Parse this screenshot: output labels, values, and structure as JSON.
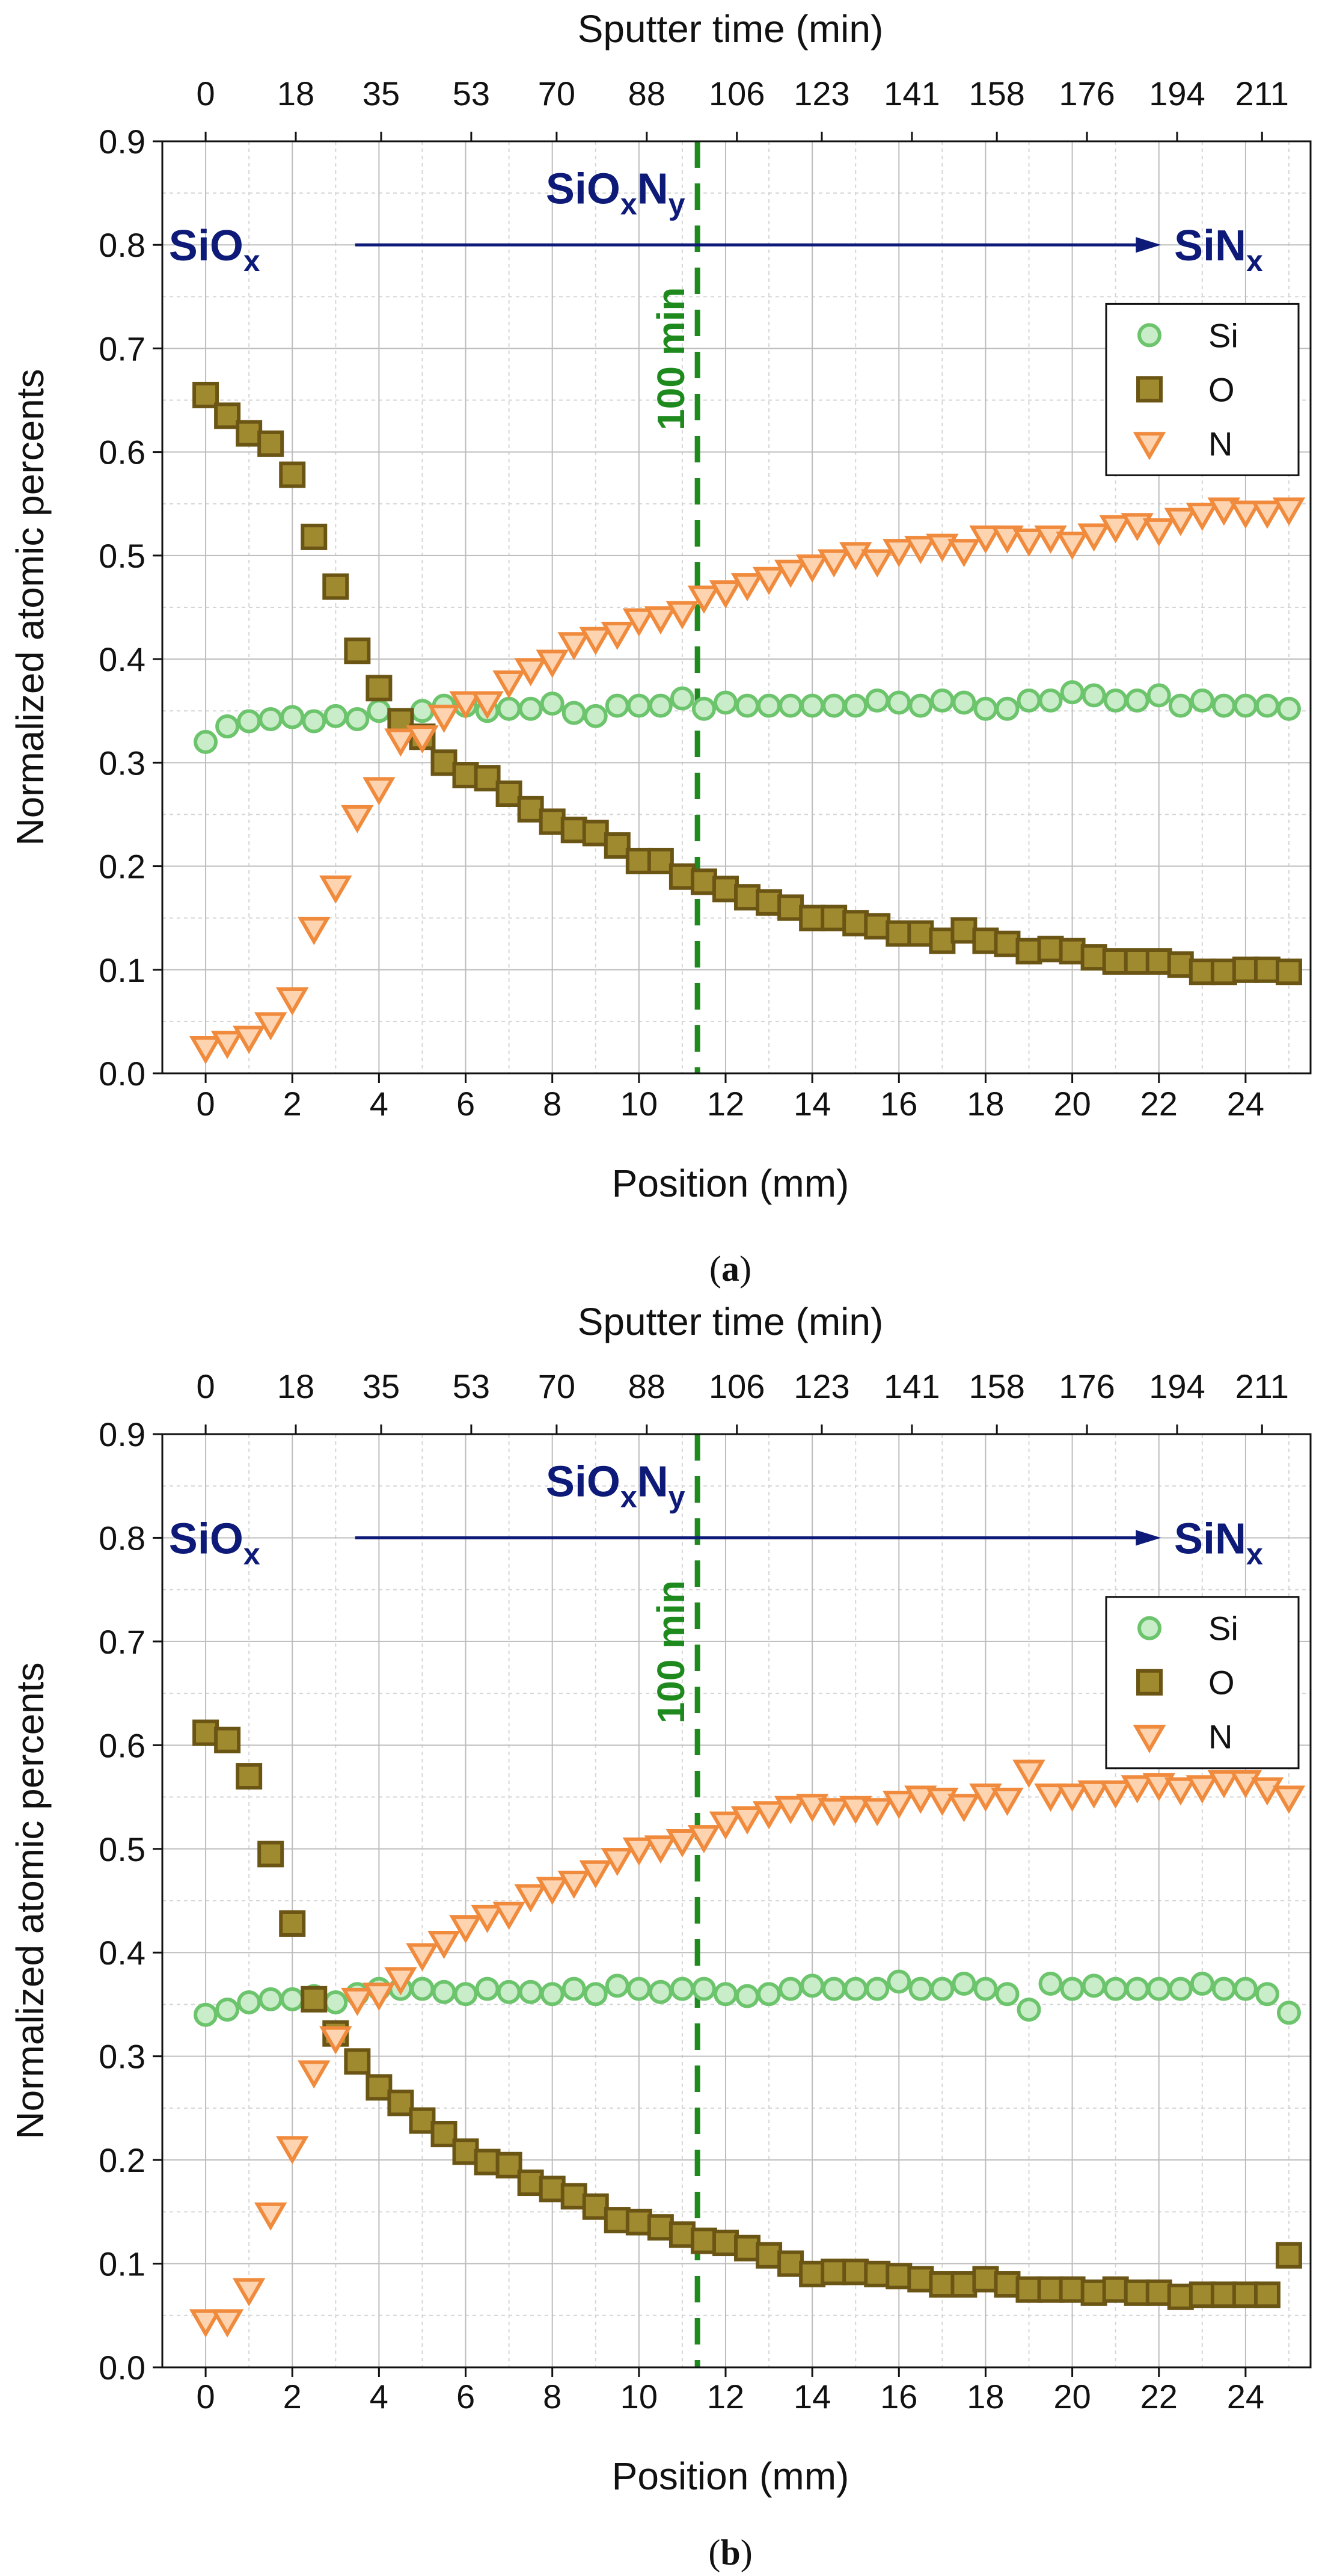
{
  "chart_data": [
    {
      "id": "a",
      "type": "scatter",
      "caption_letter": "a",
      "caption_open": "(",
      "caption_close": ")",
      "xlabel": "Position (mm)",
      "ylabel": "Normalized atomic percents",
      "top_label": "Sputter time (min)",
      "xlim": [
        -1,
        25.5
      ],
      "ylim": [
        0,
        0.9
      ],
      "xticks": [
        0,
        2,
        4,
        6,
        8,
        10,
        12,
        14,
        16,
        18,
        20,
        22,
        24
      ],
      "yticks": [
        "0.0",
        "0.1",
        "0.2",
        "0.3",
        "0.4",
        "0.5",
        "0.6",
        "0.7",
        "0.8",
        "0.9"
      ],
      "top_ticks": {
        "positions": [
          0,
          2.08,
          4.05,
          6.13,
          8.1,
          10.18,
          12.26,
          14.22,
          16.3,
          18.26,
          20.34,
          22.42,
          24.38
        ],
        "labels": [
          "0",
          "18",
          "35",
          "53",
          "70",
          "88",
          "106",
          "123",
          "141",
          "158",
          "176",
          "194",
          "211"
        ]
      },
      "grid": true,
      "vline": {
        "x": 11.35,
        "label": "100 min",
        "color": "#1e8a1e"
      },
      "region_labels": {
        "left": {
          "main": "SiO",
          "sub": "x"
        },
        "middle": {
          "main1": "SiO",
          "sub1": "x",
          "main2": "N",
          "sub2": "y"
        },
        "right": {
          "main": "SiN",
          "sub": "x"
        }
      },
      "legend_position": "top-right",
      "series": [
        {
          "name": "Si",
          "marker": "circle",
          "color": "#6cc46c",
          "fill": "#c9ecc9",
          "x": [
            0,
            0.5,
            1,
            1.5,
            2,
            2.5,
            3,
            3.5,
            4,
            4.5,
            5,
            5.5,
            6,
            6.5,
            7,
            7.5,
            8,
            8.5,
            9,
            9.5,
            10,
            10.5,
            11,
            11.5,
            12,
            12.5,
            13,
            13.5,
            14,
            14.5,
            15,
            15.5,
            16,
            16.5,
            17,
            17.5,
            18,
            18.5,
            19,
            19.5,
            20,
            20.5,
            21,
            21.5,
            22,
            22.5,
            23,
            23.5,
            24,
            24.5,
            25
          ],
          "y": [
            0.32,
            0.335,
            0.34,
            0.342,
            0.344,
            0.34,
            0.345,
            0.342,
            0.35,
            0.34,
            0.35,
            0.355,
            0.355,
            0.35,
            0.352,
            0.352,
            0.357,
            0.348,
            0.345,
            0.355,
            0.355,
            0.355,
            0.362,
            0.352,
            0.358,
            0.355,
            0.355,
            0.355,
            0.355,
            0.355,
            0.355,
            0.36,
            0.358,
            0.355,
            0.36,
            0.358,
            0.352,
            0.352,
            0.36,
            0.36,
            0.368,
            0.365,
            0.36,
            0.36,
            0.365,
            0.355,
            0.36,
            0.355,
            0.355,
            0.355,
            0.352
          ]
        },
        {
          "name": "O",
          "marker": "square",
          "color": "#6b5514",
          "fill": "#a08a30",
          "x": [
            0,
            0.5,
            1,
            1.5,
            2,
            2.5,
            3,
            3.5,
            4,
            4.5,
            5,
            5.5,
            6,
            6.5,
            7,
            7.5,
            8,
            8.5,
            9,
            9.5,
            10,
            10.5,
            11,
            11.5,
            12,
            12.5,
            13,
            13.5,
            14,
            14.5,
            15,
            15.5,
            16,
            16.5,
            17,
            17.5,
            18,
            18.5,
            19,
            19.5,
            20,
            20.5,
            21,
            21.5,
            22,
            22.5,
            23,
            23.5,
            24,
            24.5,
            25
          ],
          "y": [
            0.655,
            0.635,
            0.618,
            0.608,
            0.578,
            0.518,
            0.47,
            0.408,
            0.372,
            0.34,
            0.325,
            0.3,
            0.288,
            0.285,
            0.27,
            0.255,
            0.243,
            0.235,
            0.232,
            0.22,
            0.205,
            0.205,
            0.19,
            0.185,
            0.178,
            0.17,
            0.165,
            0.16,
            0.15,
            0.15,
            0.145,
            0.142,
            0.135,
            0.135,
            0.128,
            0.138,
            0.128,
            0.125,
            0.118,
            0.12,
            0.118,
            0.112,
            0.108,
            0.108,
            0.108,
            0.105,
            0.098,
            0.098,
            0.1,
            0.1,
            0.098
          ]
        },
        {
          "name": "N",
          "marker": "triangle-down",
          "color": "#f08a3c",
          "fill": "#fdd3b0",
          "x": [
            0,
            0.5,
            1,
            1.5,
            2,
            2.5,
            3,
            3.5,
            4,
            4.5,
            5,
            5.5,
            6,
            6.5,
            7,
            7.5,
            8,
            8.5,
            9,
            9.5,
            10,
            10.5,
            11,
            11.5,
            12,
            12.5,
            13,
            13.5,
            14,
            14.5,
            15,
            15.5,
            16,
            16.5,
            17,
            17.5,
            18,
            18.5,
            19,
            19.5,
            20,
            20.5,
            21,
            21.5,
            22,
            22.5,
            23,
            23.5,
            24,
            24.5,
            25
          ],
          "y": [
            0.025,
            0.03,
            0.035,
            0.048,
            0.072,
            0.14,
            0.18,
            0.248,
            0.275,
            0.322,
            0.325,
            0.345,
            0.358,
            0.358,
            0.378,
            0.39,
            0.398,
            0.415,
            0.42,
            0.425,
            0.438,
            0.44,
            0.445,
            0.46,
            0.465,
            0.472,
            0.478,
            0.485,
            0.49,
            0.495,
            0.502,
            0.495,
            0.505,
            0.508,
            0.51,
            0.505,
            0.518,
            0.518,
            0.515,
            0.518,
            0.512,
            0.52,
            0.528,
            0.53,
            0.525,
            0.535,
            0.54,
            0.545,
            0.542,
            0.542,
            0.545
          ]
        }
      ]
    },
    {
      "id": "b",
      "type": "scatter",
      "caption_letter": "b",
      "caption_open": "(",
      "caption_close": ")",
      "xlabel": "Position (mm)",
      "ylabel": "Normalized atomic percents",
      "top_label": "Sputter time (min)",
      "xlim": [
        -1,
        25.5
      ],
      "ylim": [
        0,
        0.9
      ],
      "xticks": [
        0,
        2,
        4,
        6,
        8,
        10,
        12,
        14,
        16,
        18,
        20,
        22,
        24
      ],
      "yticks": [
        "0.0",
        "0.1",
        "0.2",
        "0.3",
        "0.4",
        "0.5",
        "0.6",
        "0.7",
        "0.8",
        "0.9"
      ],
      "top_ticks": {
        "positions": [
          0,
          2.08,
          4.05,
          6.13,
          8.1,
          10.18,
          12.26,
          14.22,
          16.3,
          18.26,
          20.34,
          22.42,
          24.38
        ],
        "labels": [
          "0",
          "18",
          "35",
          "53",
          "70",
          "88",
          "106",
          "123",
          "141",
          "158",
          "176",
          "194",
          "211"
        ]
      },
      "grid": true,
      "vline": {
        "x": 11.35,
        "label": "100 min",
        "color": "#1e8a1e"
      },
      "region_labels": {
        "left": {
          "main": "SiO",
          "sub": "x"
        },
        "middle": {
          "main1": "SiO",
          "sub1": "x",
          "main2": "N",
          "sub2": "y"
        },
        "right": {
          "main": "SiN",
          "sub": "x"
        }
      },
      "legend_position": "top-right",
      "series": [
        {
          "name": "Si",
          "marker": "circle",
          "color": "#6cc46c",
          "fill": "#c9ecc9",
          "x": [
            0,
            0.5,
            1,
            1.5,
            2,
            2.5,
            3,
            3.5,
            4,
            4.5,
            5,
            5.5,
            6,
            6.5,
            7,
            7.5,
            8,
            8.5,
            9,
            9.5,
            10,
            10.5,
            11,
            11.5,
            12,
            12.5,
            13,
            13.5,
            14,
            14.5,
            15,
            15.5,
            16,
            16.5,
            17,
            17.5,
            18,
            18.5,
            19,
            19.5,
            20,
            20.5,
            21,
            21.5,
            22,
            22.5,
            23,
            23.5,
            24,
            24.5,
            25
          ],
          "y": [
            0.34,
            0.345,
            0.352,
            0.355,
            0.355,
            0.358,
            0.352,
            0.36,
            0.365,
            0.365,
            0.365,
            0.362,
            0.36,
            0.365,
            0.362,
            0.362,
            0.36,
            0.365,
            0.36,
            0.368,
            0.365,
            0.362,
            0.365,
            0.365,
            0.36,
            0.358,
            0.36,
            0.365,
            0.368,
            0.365,
            0.365,
            0.365,
            0.372,
            0.365,
            0.365,
            0.37,
            0.365,
            0.36,
            0.345,
            0.37,
            0.365,
            0.368,
            0.365,
            0.365,
            0.365,
            0.365,
            0.37,
            0.365,
            0.365,
            0.36,
            0.342
          ]
        },
        {
          "name": "O",
          "marker": "square",
          "color": "#6b5514",
          "fill": "#a08a30",
          "x": [
            0,
            0.5,
            1,
            1.5,
            2,
            2.5,
            3,
            3.5,
            4,
            4.5,
            5,
            5.5,
            6,
            6.5,
            7,
            7.5,
            8,
            8.5,
            9,
            9.5,
            10,
            10.5,
            11,
            11.5,
            12,
            12.5,
            13,
            13.5,
            14,
            14.5,
            15,
            15.5,
            16,
            16.5,
            17,
            17.5,
            18,
            18.5,
            19,
            19.5,
            20,
            20.5,
            21,
            21.5,
            22,
            22.5,
            23,
            23.5,
            24,
            24.5,
            25
          ],
          "y": [
            0.612,
            0.605,
            0.57,
            0.495,
            0.428,
            0.355,
            0.322,
            0.295,
            0.27,
            0.255,
            0.238,
            0.225,
            0.208,
            0.198,
            0.195,
            0.178,
            0.172,
            0.165,
            0.155,
            0.142,
            0.14,
            0.135,
            0.128,
            0.122,
            0.12,
            0.115,
            0.108,
            0.1,
            0.09,
            0.092,
            0.092,
            0.09,
            0.088,
            0.085,
            0.08,
            0.08,
            0.085,
            0.08,
            0.075,
            0.075,
            0.075,
            0.072,
            0.075,
            0.072,
            0.072,
            0.068,
            0.07,
            0.07,
            0.07,
            0.07,
            0.108
          ]
        },
        {
          "name": "N",
          "marker": "triangle-down",
          "color": "#f08a3c",
          "fill": "#fdd3b0",
          "x": [
            0,
            0.5,
            1,
            1.5,
            2,
            2.5,
            3,
            3.5,
            4,
            4.5,
            5,
            5.5,
            6,
            6.5,
            7,
            7.5,
            8,
            8.5,
            9,
            9.5,
            10,
            10.5,
            11,
            11.5,
            12,
            12.5,
            13,
            13.5,
            14,
            14.5,
            15,
            15.5,
            16,
            16.5,
            17,
            17.5,
            18,
            18.5,
            19,
            19.5,
            20,
            20.5,
            21,
            21.5,
            22,
            22.5,
            23,
            23.5,
            24,
            24.5,
            25
          ],
          "y": [
            0.045,
            0.045,
            0.075,
            0.148,
            0.212,
            0.285,
            0.318,
            0.355,
            0.36,
            0.375,
            0.398,
            0.41,
            0.425,
            0.435,
            0.438,
            0.455,
            0.462,
            0.468,
            0.478,
            0.49,
            0.5,
            0.502,
            0.508,
            0.512,
            0.525,
            0.53,
            0.535,
            0.54,
            0.542,
            0.538,
            0.54,
            0.538,
            0.545,
            0.55,
            0.548,
            0.542,
            0.552,
            0.548,
            0.575,
            0.552,
            0.552,
            0.555,
            0.555,
            0.56,
            0.562,
            0.558,
            0.56,
            0.565,
            0.565,
            0.558,
            0.55
          ]
        }
      ]
    }
  ]
}
